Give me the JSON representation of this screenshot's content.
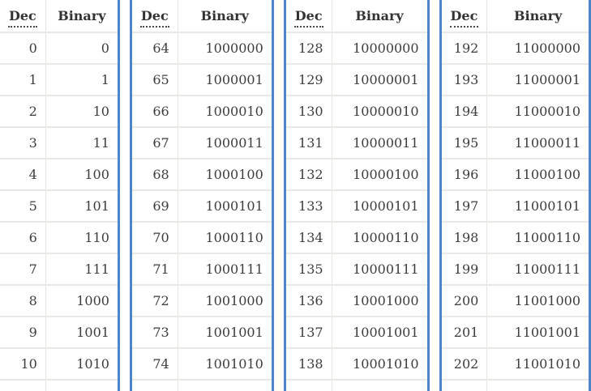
{
  "colors": {
    "table_side_border": "#4c86c8",
    "row_separator": "#e8e8e5",
    "text": "#3a3a3a",
    "background": "#ffffff"
  },
  "tables": [
    {
      "dec_header": "Dec",
      "binary_header": "Binary",
      "rows": [
        {
          "dec": "0",
          "binary": "0"
        },
        {
          "dec": "1",
          "binary": "1"
        },
        {
          "dec": "2",
          "binary": "10"
        },
        {
          "dec": "3",
          "binary": "11"
        },
        {
          "dec": "4",
          "binary": "100"
        },
        {
          "dec": "5",
          "binary": "101"
        },
        {
          "dec": "6",
          "binary": "110"
        },
        {
          "dec": "7",
          "binary": "111"
        },
        {
          "dec": "8",
          "binary": "1000"
        },
        {
          "dec": "9",
          "binary": "1001"
        },
        {
          "dec": "10",
          "binary": "1010"
        }
      ]
    },
    {
      "dec_header": "Dec",
      "binary_header": "Binary",
      "rows": [
        {
          "dec": "64",
          "binary": "1000000"
        },
        {
          "dec": "65",
          "binary": "1000001"
        },
        {
          "dec": "66",
          "binary": "1000010"
        },
        {
          "dec": "67",
          "binary": "1000011"
        },
        {
          "dec": "68",
          "binary": "1000100"
        },
        {
          "dec": "69",
          "binary": "1000101"
        },
        {
          "dec": "70",
          "binary": "1000110"
        },
        {
          "dec": "71",
          "binary": "1000111"
        },
        {
          "dec": "72",
          "binary": "1001000"
        },
        {
          "dec": "73",
          "binary": "1001001"
        },
        {
          "dec": "74",
          "binary": "1001010"
        }
      ]
    },
    {
      "dec_header": "Dec",
      "binary_header": "Binary",
      "rows": [
        {
          "dec": "128",
          "binary": "10000000"
        },
        {
          "dec": "129",
          "binary": "10000001"
        },
        {
          "dec": "130",
          "binary": "10000010"
        },
        {
          "dec": "131",
          "binary": "10000011"
        },
        {
          "dec": "132",
          "binary": "10000100"
        },
        {
          "dec": "133",
          "binary": "10000101"
        },
        {
          "dec": "134",
          "binary": "10000110"
        },
        {
          "dec": "135",
          "binary": "10000111"
        },
        {
          "dec": "136",
          "binary": "10001000"
        },
        {
          "dec": "137",
          "binary": "10001001"
        },
        {
          "dec": "138",
          "binary": "10001010"
        }
      ]
    },
    {
      "dec_header": "Dec",
      "binary_header": "Binary",
      "rows": [
        {
          "dec": "192",
          "binary": "11000000"
        },
        {
          "dec": "193",
          "binary": "11000001"
        },
        {
          "dec": "194",
          "binary": "11000010"
        },
        {
          "dec": "195",
          "binary": "11000011"
        },
        {
          "dec": "196",
          "binary": "11000100"
        },
        {
          "dec": "197",
          "binary": "11000101"
        },
        {
          "dec": "198",
          "binary": "11000110"
        },
        {
          "dec": "199",
          "binary": "11000111"
        },
        {
          "dec": "200",
          "binary": "11001000"
        },
        {
          "dec": "201",
          "binary": "11001001"
        },
        {
          "dec": "202",
          "binary": "11001010"
        }
      ]
    }
  ]
}
